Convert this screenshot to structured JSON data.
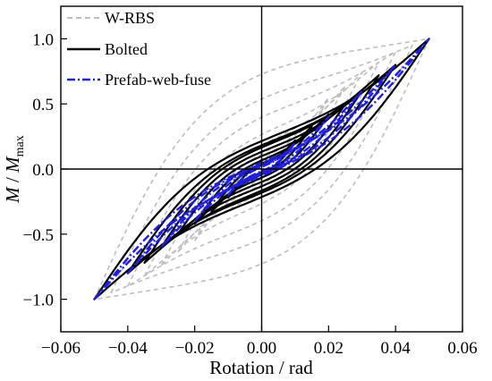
{
  "chart_data": {
    "type": "line",
    "xlabel": "Rotation / rad",
    "ylabel": {
      "main": "M",
      "sep": " / ",
      "denom": "M",
      "sub": "max"
    },
    "xlim": [
      -0.06,
      0.06
    ],
    "ylim": [
      -1.25,
      1.25
    ],
    "x_ticks": [
      -0.06,
      -0.04,
      -0.02,
      0.0,
      0.02,
      0.04,
      0.06
    ],
    "x_tick_labels": [
      "−0.06",
      "−0.04",
      "−0.02",
      "0.00",
      "0.02",
      "0.04",
      "0.06"
    ],
    "y_ticks": [
      -1.0,
      -0.5,
      0.0,
      0.5,
      1.0
    ],
    "y_tick_labels": [
      "−1.0",
      "−0.5",
      "0.0",
      "0.5",
      "1.0"
    ],
    "zero_lines": true,
    "grid": false,
    "legend_position": "top-left",
    "series": [
      {
        "name": "W-RBS",
        "color": "#bdbdbd",
        "style": "dashed",
        "loops": [
          {
            "amp": 0.0125,
            "pm": 0.25,
            "y0": 0.02
          },
          {
            "amp": 0.015,
            "pm": 0.35,
            "y0": 0.04
          },
          {
            "amp": 0.02,
            "pm": 0.55,
            "y0": 0.09
          },
          {
            "amp": 0.025,
            "pm": 0.64,
            "y0": 0.14
          },
          {
            "amp": 0.03,
            "pm": 0.74,
            "y0": 0.22
          },
          {
            "amp": 0.035,
            "pm": 0.82,
            "y0": 0.32
          },
          {
            "amp": 0.04,
            "pm": 0.9,
            "y0": 0.48
          },
          {
            "amp": 0.045,
            "pm": 0.95,
            "y0": 0.65
          },
          {
            "amp": 0.05,
            "pm": 1.0,
            "y0": 0.88
          }
        ]
      },
      {
        "name": "Bolted",
        "color": "#000000",
        "style": "solid",
        "loops": [
          {
            "amp": 0.01,
            "pm": 0.22,
            "y0": 0.04
          },
          {
            "amp": 0.015,
            "pm": 0.33,
            "y0": 0.05
          },
          {
            "amp": 0.02,
            "pm": 0.42,
            "y0": 0.08
          },
          {
            "amp": 0.025,
            "pm": 0.5,
            "y0": 0.12
          },
          {
            "amp": 0.03,
            "pm": 0.6,
            "y0": 0.16
          },
          {
            "amp": 0.035,
            "pm": 0.72,
            "y0": 0.2
          },
          {
            "amp": 0.04,
            "pm": 0.8,
            "y0": 0.22
          },
          {
            "amp": 0.05,
            "pm": 1.0,
            "y0": 0.26
          }
        ]
      },
      {
        "name": "Prefab-web-fuse",
        "color": "#1f1fe0",
        "style": "dashdot",
        "loops": [
          {
            "amp": 0.01,
            "pm": 0.2,
            "y0": 0.02
          },
          {
            "amp": 0.02,
            "pm": 0.4,
            "y0": 0.03
          },
          {
            "amp": 0.03,
            "pm": 0.6,
            "y0": 0.04
          },
          {
            "amp": 0.04,
            "pm": 0.8,
            "y0": 0.05
          },
          {
            "amp": 0.05,
            "pm": 1.0,
            "y0": 0.06
          }
        ]
      }
    ]
  }
}
